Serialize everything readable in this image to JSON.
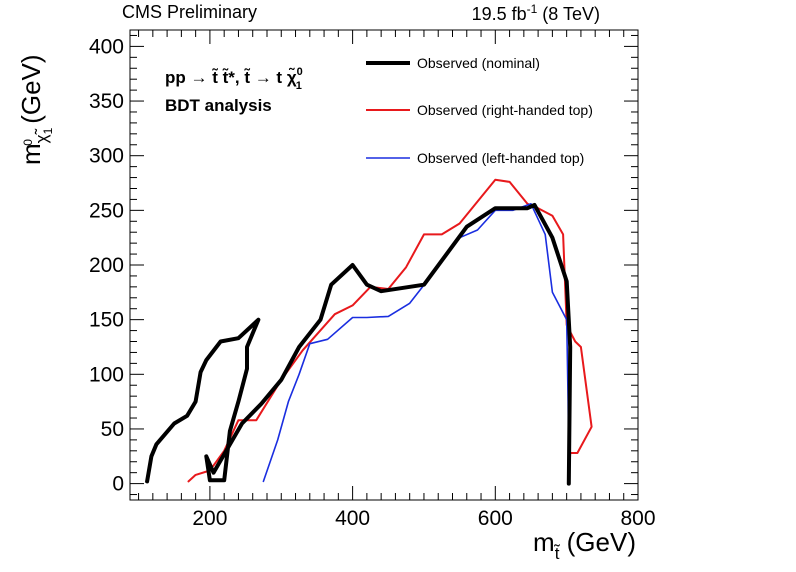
{
  "header": {
    "left": "CMS Preliminary",
    "right_prefix": "19.5 fb",
    "right_sup": "-1",
    "right_suffix": " (8 TeV)"
  },
  "annotations": {
    "process": "pp → t̃ t̃*, t̃ → t χ̃",
    "process_sup": "0",
    "process_sub": "1",
    "analysis": "BDT analysis"
  },
  "colors": {
    "nominal": "#000000",
    "right_handed": "#e8191c",
    "left_handed": "#1a2ee0"
  },
  "chart_data": {
    "type": "line",
    "xlabel_main": "m",
    "xlabel_sub": "t̃",
    "xlabel_unit": " (GeV)",
    "ylabel_main": "m",
    "ylabel_sub": "χ̃",
    "ylabel_subsub": "1",
    "ylabel_sup": "0",
    "ylabel_unit": " (GeV)",
    "xlim": [
      88,
      800
    ],
    "ylim": [
      -15,
      415
    ],
    "xticks": [
      200,
      400,
      600,
      800
    ],
    "yticks": [
      0,
      50,
      100,
      150,
      200,
      250,
      300,
      350,
      400
    ],
    "grid": false,
    "legend_position": "top-right",
    "series": [
      {
        "name": "Observed (nominal)",
        "color_key": "nominal",
        "width": 4,
        "segments": [
          [
            [
              112,
              2
            ],
            [
              118,
              25
            ],
            [
              125,
              36
            ],
            [
              150,
              55
            ],
            [
              168,
              62
            ],
            [
              180,
              75
            ],
            [
              187,
              102
            ],
            [
              195,
              113
            ],
            [
              215,
              130
            ],
            [
              240,
              133
            ],
            [
              268,
              150
            ],
            [
              252,
              125
            ],
            [
              252,
              105
            ],
            [
              240,
              75
            ],
            [
              228,
              48
            ],
            [
              220,
              3
            ],
            [
              200,
              3
            ],
            [
              195,
              25
            ],
            [
              205,
              10
            ],
            [
              245,
              55
            ],
            [
              272,
              73
            ],
            [
              300,
              95
            ],
            [
              325,
              125
            ],
            [
              355,
              150
            ],
            [
              370,
              182
            ],
            [
              400,
              200
            ],
            [
              420,
              182
            ],
            [
              440,
              176
            ],
            [
              500,
              182
            ],
            [
              560,
              235
            ],
            [
              600,
              252
            ],
            [
              625,
              252
            ],
            [
              645,
              252
            ],
            [
              655,
              255
            ],
            [
              680,
              225
            ],
            [
              700,
              185
            ],
            [
              705,
              125
            ],
            [
              703,
              0
            ]
          ]
        ]
      },
      {
        "name": "Observed (right-handed top)",
        "color_key": "right_handed",
        "width": 2,
        "segments": [
          [
            [
              170,
              2
            ],
            [
              180,
              8
            ],
            [
              200,
              12
            ],
            [
              220,
              30
            ],
            [
              240,
              58
            ],
            [
              265,
              58
            ],
            [
              300,
              95
            ],
            [
              330,
              122
            ],
            [
              375,
              155
            ],
            [
              400,
              163
            ],
            [
              425,
              180
            ],
            [
              450,
              178
            ],
            [
              475,
              198
            ],
            [
              500,
              228
            ],
            [
              525,
              228
            ],
            [
              550,
              238
            ],
            [
              580,
              262
            ],
            [
              600,
              278
            ],
            [
              620,
              276
            ],
            [
              645,
              256
            ],
            [
              660,
              252
            ],
            [
              680,
              245
            ],
            [
              695,
              228
            ],
            [
              700,
              145
            ],
            [
              712,
              130
            ],
            [
              720,
              125
            ],
            [
              735,
              52
            ],
            [
              715,
              28
            ],
            [
              705,
              28
            ],
            [
              703,
              0
            ]
          ]
        ]
      },
      {
        "name": "Observed (left-handed top)",
        "color_key": "left_handed",
        "width": 1.6,
        "segments": [
          [
            [
              275,
              2
            ],
            [
              295,
              40
            ],
            [
              310,
              75
            ],
            [
              325,
              100
            ],
            [
              340,
              128
            ],
            [
              365,
              132
            ],
            [
              400,
              152
            ],
            [
              420,
              152
            ],
            [
              450,
              153
            ],
            [
              480,
              165
            ],
            [
              510,
              190
            ],
            [
              550,
              225
            ],
            [
              575,
              232
            ],
            [
              600,
              250
            ],
            [
              625,
              250
            ],
            [
              650,
              256
            ],
            [
              670,
              228
            ],
            [
              680,
              175
            ],
            [
              700,
              150
            ],
            [
              702,
              75
            ],
            [
              703,
              0
            ]
          ]
        ]
      }
    ]
  }
}
